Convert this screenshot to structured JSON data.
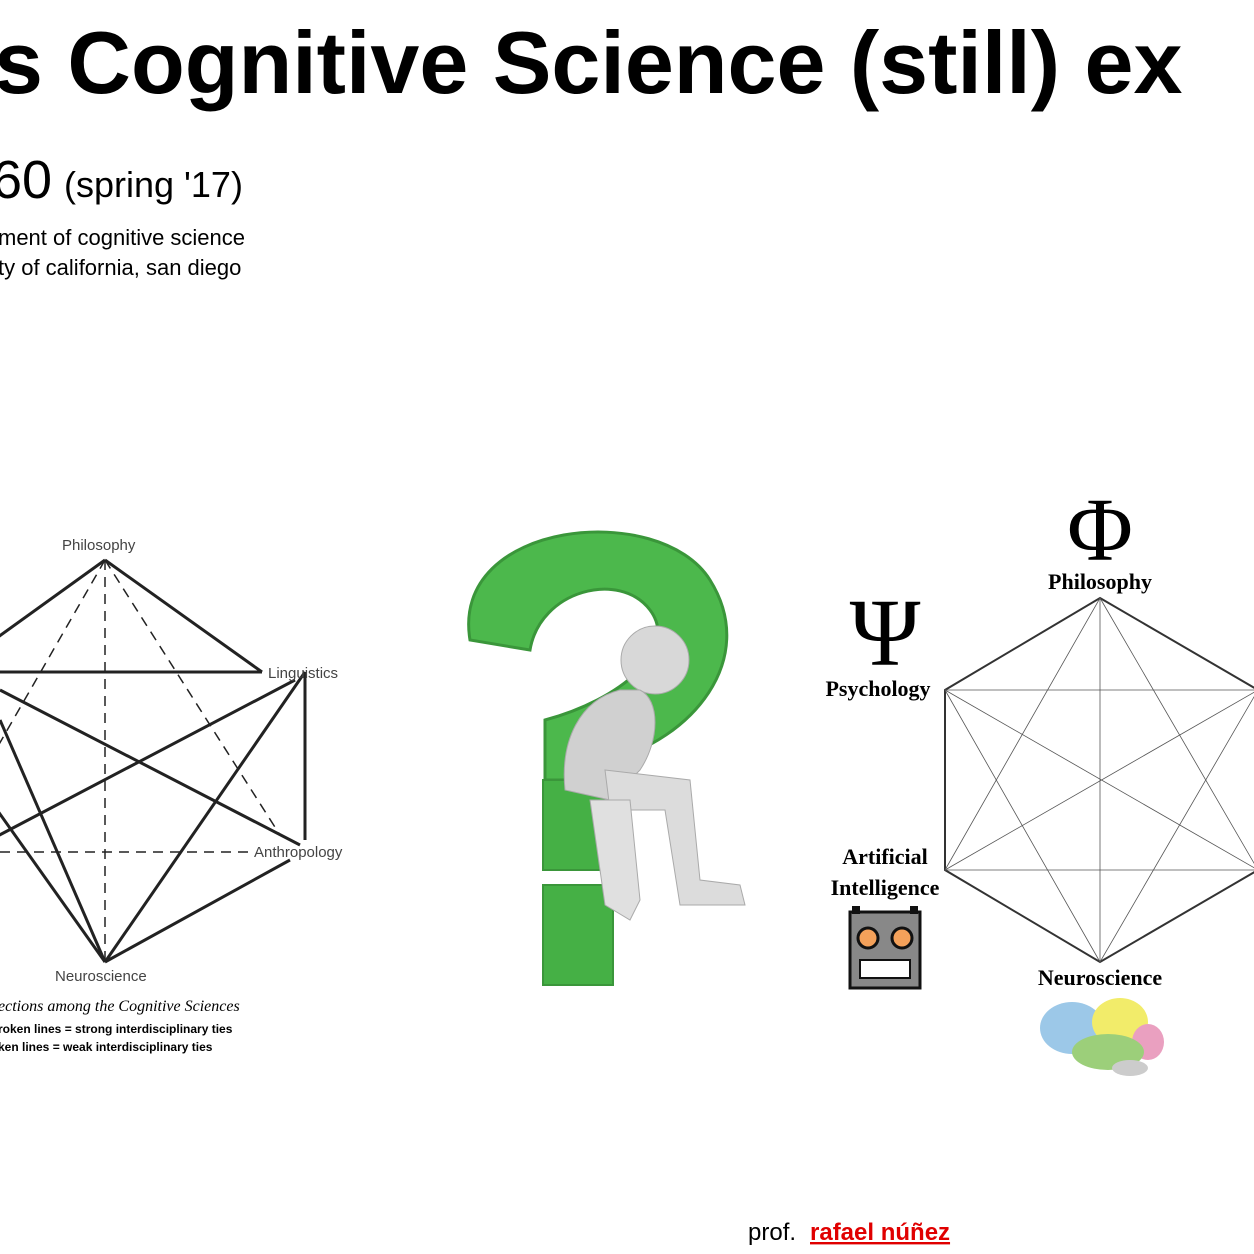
{
  "header": {
    "title": "s Cognitive Science (still) ex",
    "course": "60",
    "term": "(spring '17)",
    "department": "ment of cognitive science",
    "university": "ty of california, san diego"
  },
  "left_diagram": {
    "nodes": [
      "Philosophy",
      "Linguistics",
      "Anthropology",
      "Neuroscience"
    ],
    "caption": "ections among the Cognitive Sciences",
    "legend": [
      "roken lines = strong interdisciplinary ties",
      "ken lines = weak interdisciplinary ties"
    ]
  },
  "right_diagram": {
    "symbols": [
      "Φ",
      "Ψ"
    ],
    "nodes": [
      "Philosophy",
      "Psychology",
      "Artificial",
      "Intelligence",
      "Neuroscience"
    ]
  },
  "footer": {
    "prefix": "prof.",
    "author": "rafael núñez"
  }
}
